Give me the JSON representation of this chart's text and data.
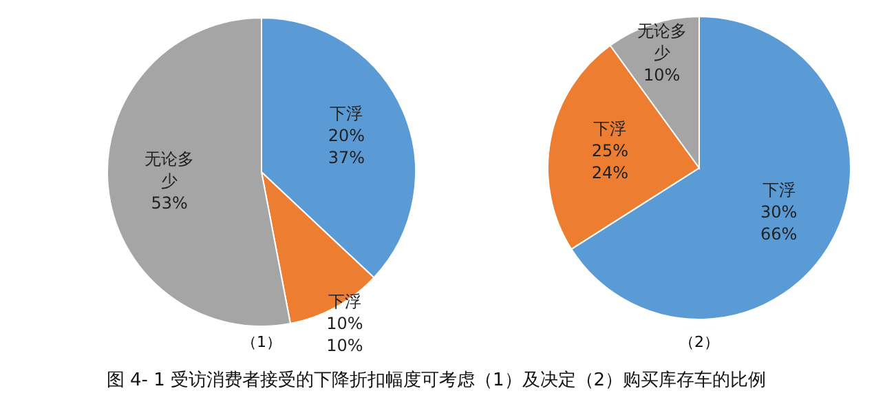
{
  "chart_data": [
    {
      "type": "pie",
      "subtitle": "（1）",
      "categories": [
        "下浮\n20%",
        "下浮\n10%",
        "无论多少"
      ],
      "values": [
        37,
        10,
        53
      ],
      "colors": [
        "#5b9bd5",
        "#ed7d31",
        "#a5a5a5"
      ],
      "value_labels": [
        "37%",
        "10%",
        "53%"
      ],
      "annotations": [
        "图 4- 1 受访消费者接受的下降折扣幅度可考虑（1）及决定（2）购买库存车的比例"
      ]
    },
    {
      "type": "pie",
      "subtitle": "（2）",
      "categories": [
        "下浮\n30%",
        "下浮\n25%",
        "无论多少"
      ],
      "values": [
        66,
        24,
        10
      ],
      "colors": [
        "#5b9bd5",
        "#ed7d31",
        "#a5a5a5"
      ],
      "value_labels": [
        "66%",
        "24%",
        "10%"
      ]
    }
  ]
}
